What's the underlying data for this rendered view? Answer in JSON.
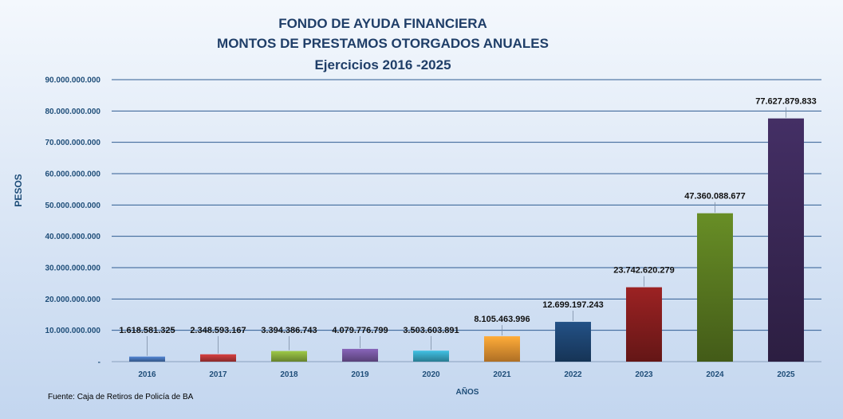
{
  "chart_data": {
    "type": "bar",
    "title": [
      "FONDO DE AYUDA FINANCIERA",
      "MONTOS  DE  PRESTAMOS  OTORGADOS  ANUALES",
      "Ejercicios  2016 -2025"
    ],
    "xlabel": "AÑOS",
    "ylabel": "PESOS",
    "source": "Fuente: Caja de Retiros de Policía de BA",
    "categories": [
      "2016",
      "2017",
      "2018",
      "2019",
      "2020",
      "2021",
      "2022",
      "2023",
      "2024",
      "2025"
    ],
    "values": [
      1618581325,
      2348593167,
      3394386743,
      4079776799,
      3503603891,
      8105463996,
      12699197243,
      23742620279,
      47360088677,
      77627879833
    ],
    "data_labels": [
      "1.618.581.325",
      "2.348.593.167",
      "3.394.386.743",
      "4.079.776.799",
      "3.503.603.891",
      "8.105.463.996",
      "12.699.197.243",
      "23.742.620.279",
      "47.360.088.677",
      "77.627.879.833"
    ],
    "ylim": [
      0,
      90000000000
    ],
    "yticks": [
      0,
      10000000000,
      20000000000,
      30000000000,
      40000000000,
      50000000000,
      60000000000,
      70000000000,
      80000000000,
      90000000000
    ],
    "ytick_labels": [
      "-",
      "10.000.000.000",
      "20.000.000.000",
      "30.000.000.000",
      "40.000.000.000",
      "50.000.000.000",
      "60.000.000.000",
      "70.000.000.000",
      "80.000.000.000",
      "90.000.000.000"
    ],
    "grid": true,
    "legend": "none",
    "colors": [
      "#4a78bd",
      "#c0393a",
      "#8db43f",
      "#7a5aa6",
      "#3aaccb",
      "#f29a33",
      "#1f4878",
      "#8b1e1f",
      "#5d7f22",
      "#3d2a5a"
    ]
  }
}
